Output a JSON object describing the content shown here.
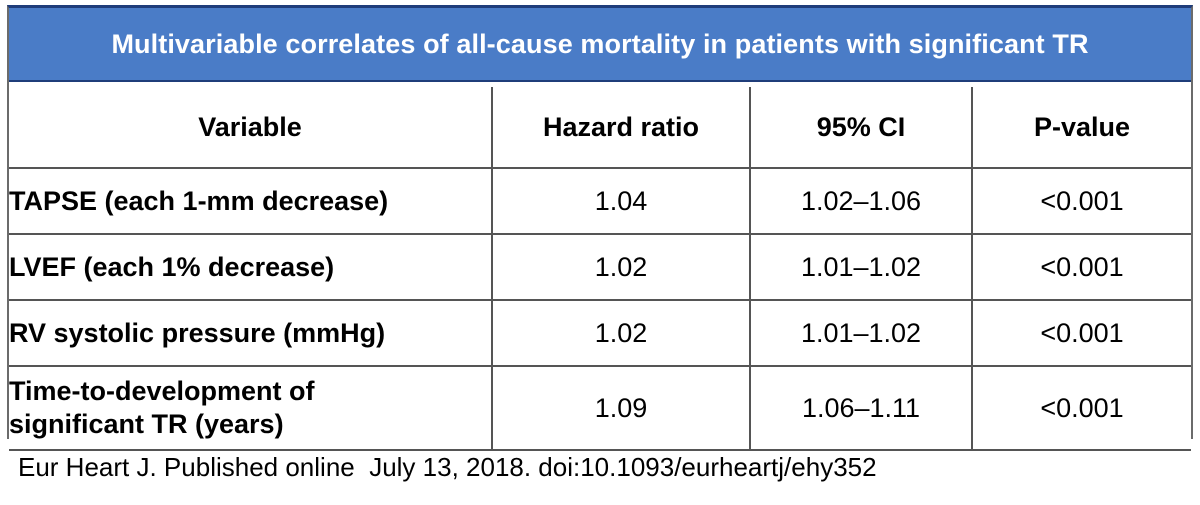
{
  "title": "Multivariable correlates of all-cause mortality in patients with significant TR",
  "columns": [
    "Variable",
    "Hazard ratio",
    "95% CI",
    "P-value"
  ],
  "rows": [
    {
      "variable": "TAPSE (each 1-mm decrease)",
      "hazard_ratio": "1.04",
      "ci": "1.02–1.06",
      "p_value": "<0.001"
    },
    {
      "variable": "LVEF (each 1% decrease)",
      "hazard_ratio": "1.02",
      "ci": "1.01–1.02",
      "p_value": "<0.001"
    },
    {
      "variable": "RV systolic pressure (mmHg)",
      "hazard_ratio": "1.02",
      "ci": "1.01–1.02",
      "p_value": "<0.001"
    },
    {
      "variable_line1": "Time-to-development of",
      "variable_line2": "significant TR (years)",
      "hazard_ratio": "1.09",
      "ci": "1.06–1.11",
      "p_value": "<0.001"
    }
  ],
  "citation": "Eur Heart J. Published online  July 13, 2018. doi:10.1093/eurheartj/ehy352",
  "colors": {
    "title_bg": "#4a7cc7",
    "title_text": "#ffffff",
    "border_dark": "#1f3d7a"
  }
}
